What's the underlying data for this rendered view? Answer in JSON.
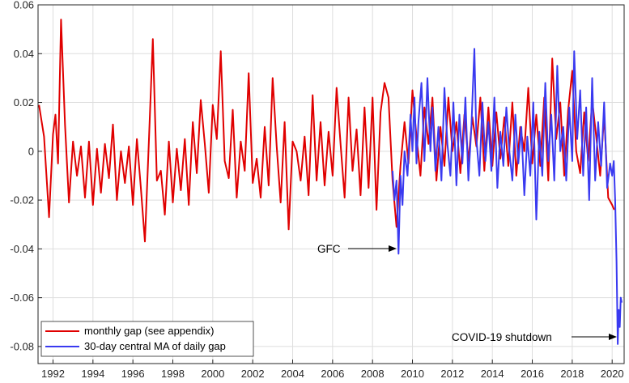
{
  "chart_data": {
    "type": "line",
    "title": "",
    "xlabel": "",
    "ylabel": "",
    "xlim": [
      1991.25,
      2020.6
    ],
    "ylim": [
      -0.087,
      0.06
    ],
    "xticks": [
      1992,
      1994,
      1996,
      1998,
      2000,
      2002,
      2004,
      2006,
      2008,
      2010,
      2012,
      2014,
      2016,
      2018,
      2020
    ],
    "yticks": [
      -0.08,
      -0.06,
      -0.04,
      -0.02,
      0,
      0.02,
      0.04,
      0.06
    ],
    "ytick_labels": [
      "-0.08",
      "-0.06",
      "-0.04",
      "-0.02",
      "0",
      "0.02",
      "0.04",
      "0.06"
    ],
    "grid": true,
    "legend_position": "bottom-left",
    "series": [
      {
        "name": "monthly gap (see appendix)",
        "color": "#e00000",
        "x": [
          1991.3,
          1991.55,
          1991.8,
          1992.0,
          1992.12,
          1992.25,
          1992.4,
          1992.6,
          1992.8,
          1993.0,
          1993.2,
          1993.4,
          1993.6,
          1993.8,
          1994.0,
          1994.2,
          1994.4,
          1994.6,
          1994.8,
          1995.0,
          1995.2,
          1995.4,
          1995.6,
          1995.8,
          1996.0,
          1996.2,
          1996.4,
          1996.6,
          1996.8,
          1997.0,
          1997.2,
          1997.4,
          1997.6,
          1997.8,
          1998.0,
          1998.2,
          1998.4,
          1998.6,
          1998.8,
          1999.0,
          1999.2,
          1999.4,
          1999.6,
          1999.8,
          2000.0,
          2000.2,
          2000.4,
          2000.6,
          2000.8,
          2001.0,
          2001.2,
          2001.4,
          2001.6,
          2001.8,
          2002.0,
          2002.2,
          2002.4,
          2002.6,
          2002.8,
          2003.0,
          2003.2,
          2003.4,
          2003.6,
          2003.8,
          2004.0,
          2004.2,
          2004.4,
          2004.6,
          2004.8,
          2005.0,
          2005.2,
          2005.4,
          2005.6,
          2005.8,
          2006.0,
          2006.2,
          2006.4,
          2006.6,
          2006.8,
          2007.0,
          2007.2,
          2007.4,
          2007.6,
          2007.8,
          2008.0,
          2008.2,
          2008.4,
          2008.6,
          2008.8,
          2009.0,
          2009.2,
          2009.4,
          2009.6,
          2009.8,
          2010.0,
          2010.2,
          2010.4,
          2010.6,
          2010.8,
          2011.0,
          2011.2,
          2011.4,
          2011.6,
          2011.8,
          2012.0,
          2012.2,
          2012.4,
          2012.6,
          2012.8,
          2013.0,
          2013.2,
          2013.4,
          2013.6,
          2013.8,
          2014.0,
          2014.2,
          2014.4,
          2014.6,
          2014.8,
          2015.0,
          2015.2,
          2015.4,
          2015.6,
          2015.8,
          2016.0,
          2016.2,
          2016.4,
          2016.6,
          2016.8,
          2017.0,
          2017.2,
          2017.4,
          2017.6,
          2017.8,
          2018.0,
          2018.2,
          2018.4,
          2018.6,
          2018.8,
          2019.0,
          2019.2,
          2019.4,
          2019.6,
          2019.8,
          2020.0,
          2020.1
        ],
        "values": [
          0.019,
          0.006,
          -0.027,
          0.007,
          0.015,
          -0.005,
          0.054,
          0.011,
          -0.021,
          0.004,
          -0.01,
          0.002,
          -0.019,
          0.004,
          -0.022,
          0.001,
          -0.017,
          0.003,
          -0.011,
          0.011,
          -0.02,
          0.0,
          -0.013,
          0.002,
          -0.022,
          0.005,
          -0.015,
          -0.037,
          0.004,
          0.046,
          -0.012,
          -0.008,
          -0.026,
          0.004,
          -0.021,
          0.001,
          -0.016,
          0.005,
          -0.022,
          0.012,
          -0.009,
          0.021,
          0.003,
          -0.017,
          0.019,
          0.005,
          0.041,
          -0.004,
          -0.011,
          0.017,
          -0.019,
          0.004,
          -0.008,
          0.032,
          -0.013,
          -0.003,
          -0.019,
          0.01,
          -0.014,
          0.03,
          0.002,
          -0.021,
          0.012,
          -0.032,
          0.004,
          0.0,
          -0.012,
          0.006,
          -0.018,
          0.023,
          -0.012,
          0.012,
          -0.014,
          0.008,
          -0.01,
          0.026,
          0.003,
          -0.019,
          0.022,
          -0.008,
          0.009,
          -0.018,
          0.018,
          -0.015,
          0.022,
          -0.024,
          0.016,
          0.028,
          0.022,
          -0.012,
          -0.031,
          -0.006,
          0.012,
          -0.005,
          0.025,
          0.006,
          -0.01,
          0.018,
          0.003,
          0.022,
          -0.012,
          0.01,
          -0.006,
          0.022,
          0.0,
          0.012,
          -0.009,
          0.015,
          -0.004,
          0.014,
          0.002,
          0.022,
          -0.008,
          0.018,
          -0.006,
          0.016,
          -0.003,
          0.014,
          -0.006,
          0.02,
          -0.01,
          0.01,
          0.0,
          0.026,
          -0.005,
          0.015,
          -0.006,
          0.022,
          -0.012,
          0.038,
          0.005,
          0.02,
          -0.01,
          0.017,
          0.033,
          0.0,
          -0.009,
          0.016,
          -0.004,
          0.021,
          0.006,
          -0.01,
          0.015,
          -0.019,
          -0.022,
          -0.024
        ]
      },
      {
        "name": "30-day central MA of daily gap",
        "color": "#3a3af0",
        "x": [
          2009.0,
          2009.1,
          2009.2,
          2009.3,
          2009.4,
          2009.5,
          2009.6,
          2009.75,
          2009.9,
          2010.0,
          2010.1,
          2010.2,
          2010.3,
          2010.45,
          2010.6,
          2010.75,
          2010.9,
          2011.0,
          2011.15,
          2011.3,
          2011.45,
          2011.6,
          2011.75,
          2011.9,
          2012.05,
          2012.2,
          2012.35,
          2012.5,
          2012.65,
          2012.8,
          2012.95,
          2013.1,
          2013.2,
          2013.35,
          2013.5,
          2013.65,
          2013.8,
          2013.95,
          2014.1,
          2014.25,
          2014.4,
          2014.55,
          2014.7,
          2014.85,
          2015.0,
          2015.15,
          2015.3,
          2015.45,
          2015.6,
          2015.75,
          2015.9,
          2016.05,
          2016.2,
          2016.35,
          2016.5,
          2016.65,
          2016.8,
          2016.95,
          2017.1,
          2017.25,
          2017.4,
          2017.55,
          2017.7,
          2017.85,
          2018.0,
          2018.1,
          2018.25,
          2018.4,
          2018.55,
          2018.7,
          2018.85,
          2019.0,
          2019.15,
          2019.3,
          2019.45,
          2019.6,
          2019.75,
          2019.9,
          2020.0,
          2020.08,
          2020.15,
          2020.22,
          2020.28,
          2020.33,
          2020.38,
          2020.43,
          2020.48
        ],
        "values": [
          -0.008,
          -0.02,
          -0.012,
          -0.042,
          -0.01,
          -0.022,
          0.0,
          -0.01,
          0.015,
          0.0,
          0.022,
          -0.005,
          0.012,
          0.028,
          -0.004,
          0.03,
          0.0,
          0.018,
          -0.008,
          0.01,
          -0.012,
          0.026,
          0.003,
          -0.01,
          0.02,
          -0.014,
          0.015,
          -0.005,
          0.022,
          -0.012,
          0.01,
          0.042,
          0.005,
          -0.01,
          0.02,
          -0.004,
          0.012,
          -0.008,
          0.022,
          -0.015,
          0.008,
          -0.006,
          0.018,
          0.0,
          -0.012,
          0.015,
          -0.005,
          0.01,
          -0.018,
          0.006,
          -0.01,
          0.02,
          -0.028,
          0.008,
          -0.01,
          0.028,
          -0.004,
          0.015,
          -0.012,
          0.035,
          0.0,
          0.01,
          -0.012,
          0.018,
          -0.004,
          0.041,
          0.005,
          0.025,
          -0.01,
          0.018,
          -0.02,
          0.03,
          -0.012,
          0.012,
          -0.006,
          0.02,
          -0.015,
          -0.005,
          -0.01,
          -0.004,
          -0.02,
          -0.045,
          -0.079,
          -0.065,
          -0.072,
          -0.06,
          -0.062
        ]
      }
    ],
    "annotations": [
      {
        "text": "GFC",
        "x": 2009.3,
        "y": -0.042
      },
      {
        "text": "COVID-19 shutdown",
        "x": 2020.3,
        "y": -0.079
      }
    ]
  }
}
